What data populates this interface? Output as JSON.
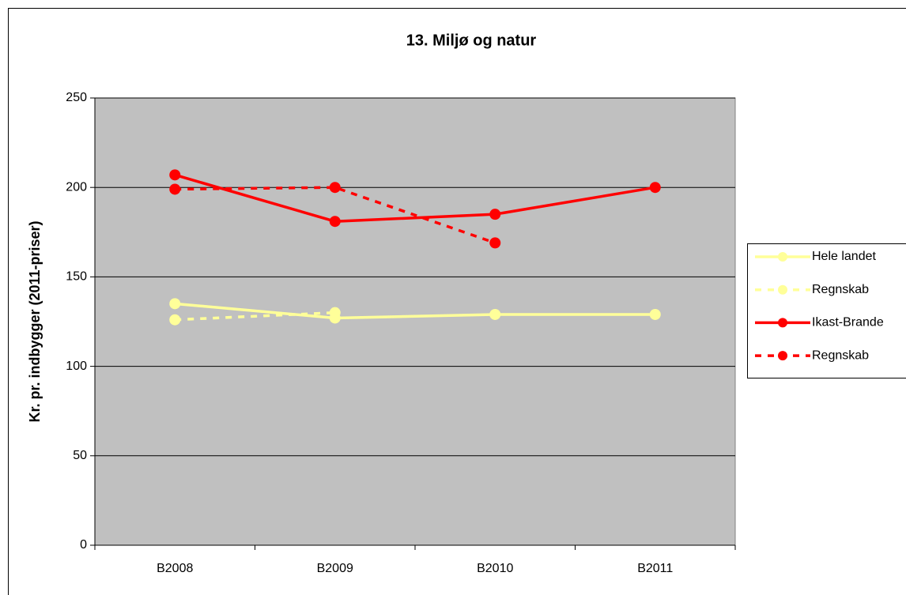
{
  "chart_data": {
    "type": "line",
    "title": "13. Miljø og natur",
    "y_label": "Kr. pr. indbygger (2011-priser)",
    "categories": [
      "B2008",
      "B2009",
      "B2010",
      "B2011"
    ],
    "series": [
      {
        "name": "Hele landet",
        "color": "#ffff99",
        "dashed": false,
        "values": [
          135,
          127,
          129,
          129
        ]
      },
      {
        "name": "Regnskab",
        "color": "#ffff99",
        "dashed": true,
        "values": [
          126,
          130,
          null,
          null
        ]
      },
      {
        "name": "Ikast-Brande",
        "color": "#ff0000",
        "dashed": false,
        "values": [
          207,
          181,
          185,
          200
        ]
      },
      {
        "name": "Regnskab",
        "color": "#ff0000",
        "dashed": true,
        "values": [
          199,
          200,
          169,
          null
        ]
      }
    ],
    "ylim": [
      0,
      250
    ],
    "yticks": [
      0,
      50,
      100,
      150,
      200,
      250
    ],
    "grid": true,
    "legend": "right"
  }
}
